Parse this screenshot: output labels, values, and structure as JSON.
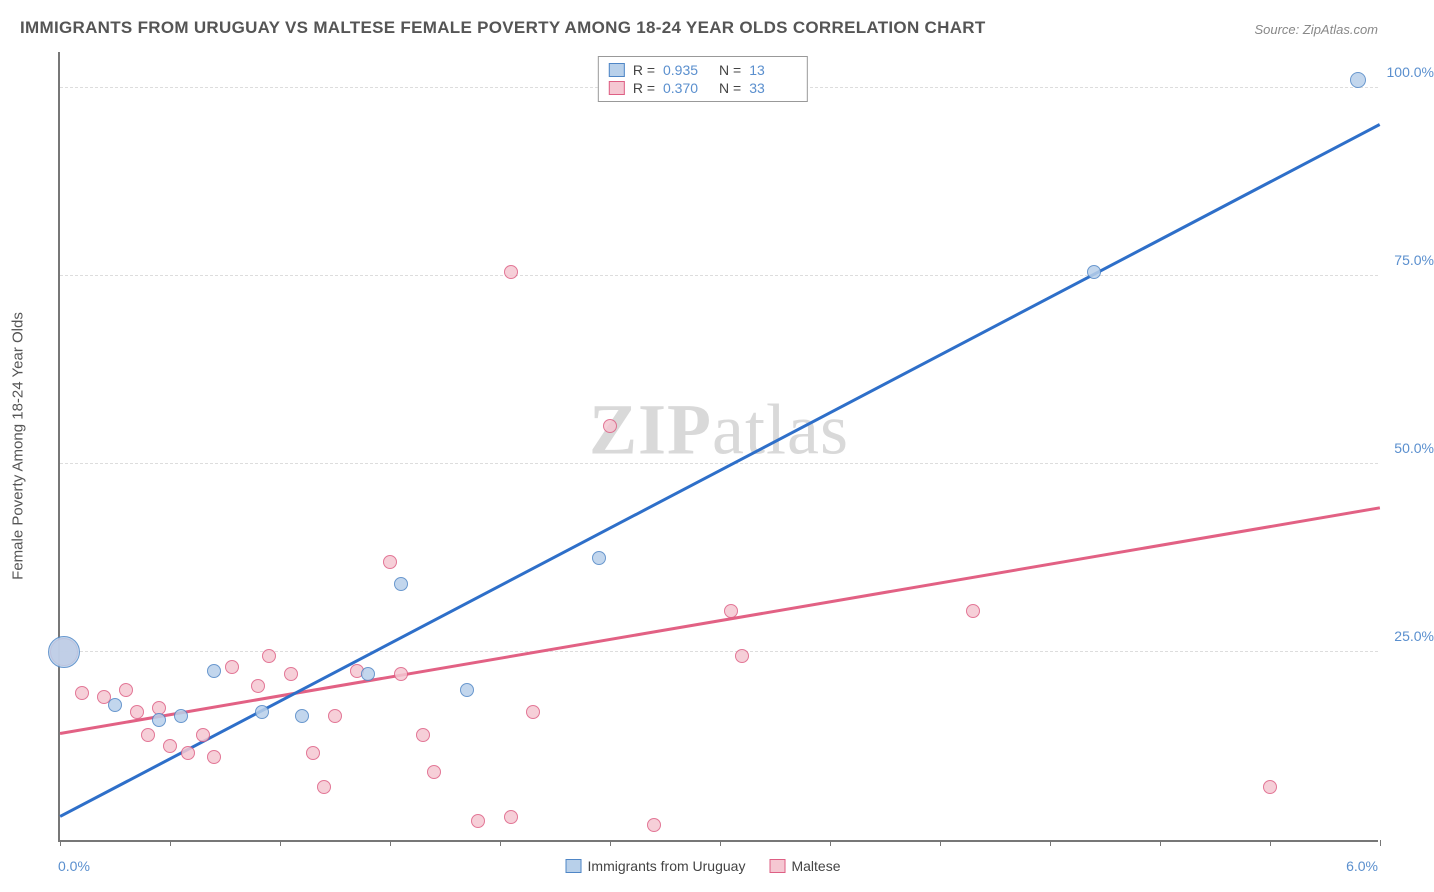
{
  "title": "IMMIGRANTS FROM URUGUAY VS MALTESE FEMALE POVERTY AMONG 18-24 YEAR OLDS CORRELATION CHART",
  "source": "Source: ZipAtlas.com",
  "watermark_a": "ZIP",
  "watermark_b": "atlas",
  "y_axis_title": "Female Poverty Among 18-24 Year Olds",
  "chart": {
    "type": "scatter",
    "background_color": "#ffffff",
    "grid_color": "#dddddd",
    "axis_color": "#777777",
    "tick_label_color": "#5a8fce",
    "title_color": "#555555",
    "title_fontsize": 17,
    "label_fontsize": 14,
    "xlim": [
      0.0,
      6.0
    ],
    "ylim": [
      0.0,
      105.0
    ],
    "x_ticks": [
      0.0,
      0.5,
      1.0,
      1.5,
      2.0,
      2.5,
      3.0,
      3.5,
      4.0,
      4.5,
      5.0,
      5.5,
      6.0
    ],
    "x_tick_labels": {
      "0": "0.0%",
      "6": "6.0%"
    },
    "y_gridlines": [
      25.0,
      50.0,
      75.0,
      100.0
    ],
    "y_tick_labels": {
      "25": "25.0%",
      "50": "50.0%",
      "75": "75.0%",
      "100": "100.0%"
    },
    "legend_top": [
      {
        "series": "uruguay",
        "r_label": "R =",
        "r": "0.935",
        "n_label": "N =",
        "n": "13"
      },
      {
        "series": "maltese",
        "r_label": "R =",
        "r": "0.370",
        "n_label": "N =",
        "n": "33"
      }
    ],
    "legend_bottom": [
      {
        "series": "uruguay",
        "label": "Immigrants from Uruguay"
      },
      {
        "series": "maltese",
        "label": "Maltese"
      }
    ],
    "series": {
      "uruguay": {
        "label": "Immigrants from Uruguay",
        "fill": "#b8d0ea",
        "stroke": "#4f86c6",
        "line_color": "#2e6fc9",
        "line_width": 2.5,
        "trend": {
          "x1": 0.0,
          "y1": 3.0,
          "x2": 6.0,
          "y2": 95.0
        },
        "points": [
          {
            "x": 0.02,
            "y": 25.0,
            "r": 16
          },
          {
            "x": 0.25,
            "y": 18.0,
            "r": 7
          },
          {
            "x": 0.45,
            "y": 16.0,
            "r": 7
          },
          {
            "x": 0.55,
            "y": 16.5,
            "r": 7
          },
          {
            "x": 0.7,
            "y": 22.5,
            "r": 7
          },
          {
            "x": 0.92,
            "y": 17.0,
            "r": 7
          },
          {
            "x": 1.1,
            "y": 16.5,
            "r": 7
          },
          {
            "x": 1.4,
            "y": 22.0,
            "r": 7
          },
          {
            "x": 1.55,
            "y": 34.0,
            "r": 7
          },
          {
            "x": 1.85,
            "y": 20.0,
            "r": 7
          },
          {
            "x": 2.45,
            "y": 37.5,
            "r": 7
          },
          {
            "x": 4.7,
            "y": 75.5,
            "r": 7
          },
          {
            "x": 5.9,
            "y": 101.0,
            "r": 8
          }
        ]
      },
      "maltese": {
        "label": "Maltese",
        "fill": "#f5c7d2",
        "stroke": "#de5f84",
        "line_color": "#e26184",
        "line_width": 2.5,
        "trend": {
          "x1": 0.0,
          "y1": 14.0,
          "x2": 6.0,
          "y2": 44.0
        },
        "points": [
          {
            "x": 0.02,
            "y": 25.0,
            "r": 14
          },
          {
            "x": 0.1,
            "y": 19.5,
            "r": 7
          },
          {
            "x": 0.2,
            "y": 19.0,
            "r": 7
          },
          {
            "x": 0.3,
            "y": 20.0,
            "r": 7
          },
          {
            "x": 0.35,
            "y": 17.0,
            "r": 7
          },
          {
            "x": 0.4,
            "y": 14.0,
            "r": 7
          },
          {
            "x": 0.45,
            "y": 17.5,
            "r": 7
          },
          {
            "x": 0.5,
            "y": 12.5,
            "r": 7
          },
          {
            "x": 0.58,
            "y": 11.5,
            "r": 7
          },
          {
            "x": 0.65,
            "y": 14.0,
            "r": 7
          },
          {
            "x": 0.7,
            "y": 11.0,
            "r": 7
          },
          {
            "x": 0.78,
            "y": 23.0,
            "r": 7
          },
          {
            "x": 0.9,
            "y": 20.5,
            "r": 7
          },
          {
            "x": 0.95,
            "y": 24.5,
            "r": 7
          },
          {
            "x": 1.05,
            "y": 22.0,
            "r": 7
          },
          {
            "x": 1.15,
            "y": 11.5,
            "r": 7
          },
          {
            "x": 1.2,
            "y": 7.0,
            "r": 7
          },
          {
            "x": 1.25,
            "y": 16.5,
            "r": 7
          },
          {
            "x": 1.35,
            "y": 22.5,
            "r": 7
          },
          {
            "x": 1.5,
            "y": 37.0,
            "r": 7
          },
          {
            "x": 1.55,
            "y": 22.0,
            "r": 7
          },
          {
            "x": 1.65,
            "y": 14.0,
            "r": 7
          },
          {
            "x": 1.7,
            "y": 9.0,
            "r": 7
          },
          {
            "x": 1.9,
            "y": 2.5,
            "r": 7
          },
          {
            "x": 2.05,
            "y": 3.0,
            "r": 7
          },
          {
            "x": 2.05,
            "y": 75.5,
            "r": 7
          },
          {
            "x": 2.15,
            "y": 17.0,
            "r": 7
          },
          {
            "x": 2.5,
            "y": 55.0,
            "r": 7
          },
          {
            "x": 2.7,
            "y": 2.0,
            "r": 7
          },
          {
            "x": 3.05,
            "y": 30.5,
            "r": 7
          },
          {
            "x": 3.1,
            "y": 24.5,
            "r": 7
          },
          {
            "x": 4.15,
            "y": 30.5,
            "r": 7
          },
          {
            "x": 5.5,
            "y": 7.0,
            "r": 7
          }
        ]
      }
    }
  }
}
